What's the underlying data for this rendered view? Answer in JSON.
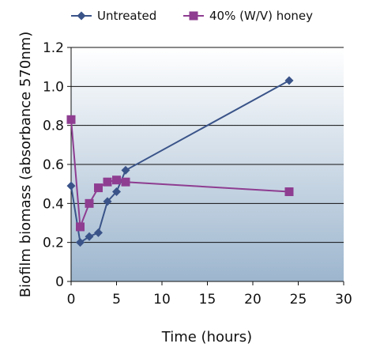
{
  "chart_data": {
    "type": "line",
    "xlabel": "Time (hours)",
    "ylabel": "Biofilm biomass (absorbance 570nm)",
    "xlim": [
      0,
      30
    ],
    "ylim": [
      0,
      1.2
    ],
    "x_ticks": [
      "0",
      "5",
      "10",
      "15",
      "20",
      "25",
      "30"
    ],
    "y_ticks": [
      "0",
      "0.2",
      "0.4",
      "0.6",
      "0.8",
      "1.0",
      "1.2"
    ],
    "grid": "horizontal",
    "legend_position": "top",
    "series": [
      {
        "name": "Untreated",
        "color": "#3a5489",
        "marker": "diamond",
        "x": [
          0,
          1,
          2,
          3,
          4,
          5,
          6,
          24
        ],
        "y": [
          0.49,
          0.2,
          0.23,
          0.25,
          0.41,
          0.46,
          0.57,
          1.03
        ]
      },
      {
        "name": "40% (W/V) honey",
        "color": "#8e3d91",
        "marker": "square",
        "x": [
          0,
          1,
          2,
          3,
          4,
          5,
          6,
          24
        ],
        "y": [
          0.83,
          0.28,
          0.4,
          0.48,
          0.51,
          0.52,
          0.51,
          0.46
        ]
      }
    ]
  }
}
